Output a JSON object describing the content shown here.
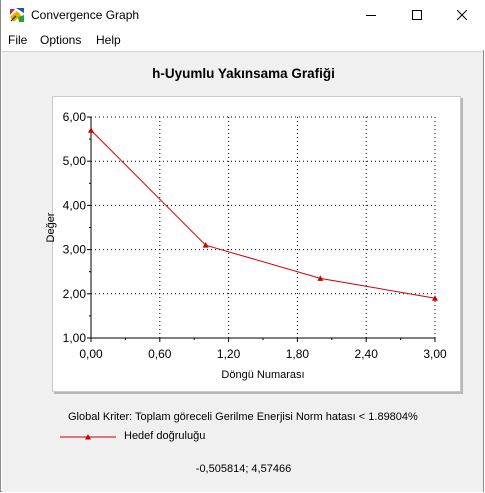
{
  "window": {
    "title": "Convergence Graph",
    "icon": "convergence-app-icon",
    "controls": [
      "minimize-icon",
      "maximize-icon",
      "close-icon"
    ]
  },
  "menu": {
    "items": [
      "File",
      "Options",
      "Help"
    ]
  },
  "chart_data": {
    "type": "line",
    "title": "h-Uyumlu Yakınsama Grafiği",
    "xlabel": "Döngü Numarası",
    "ylabel": "Değer",
    "xlim": [
      0,
      3
    ],
    "ylim": [
      1,
      6
    ],
    "xticks": [
      "0,00",
      "0,60",
      "1,20",
      "1,80",
      "2,40",
      "3,00"
    ],
    "yticks": [
      "1,00",
      "2,00",
      "3,00",
      "4,00",
      "5,00",
      "6,00"
    ],
    "grid": true,
    "series": [
      {
        "name": "Hedef doğruluğu",
        "color": "#cc0000",
        "marker": "triangle",
        "x": [
          0,
          1,
          2,
          3
        ],
        "y": [
          5.7,
          3.1,
          2.35,
          1.9
        ]
      }
    ]
  },
  "criterion_text": "Global Kriter: Toplam göreceli Gerilme Enerjisi Norm hatası < 1.89804%",
  "cursor_readout": "-0,505814; 4,57466",
  "colors": {
    "series": "#cc0000",
    "background": "#f0f0f0",
    "grid": "#000000"
  }
}
